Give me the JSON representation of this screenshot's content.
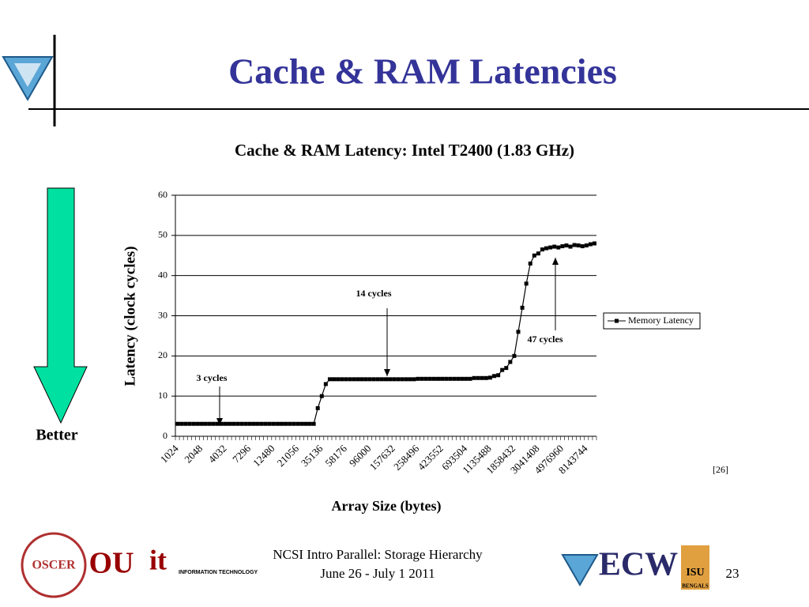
{
  "slide_title": "Cache & RAM Latencies",
  "better": "Better",
  "citation": "[26]",
  "footer": {
    "line1": "NCSI Intro Parallel: Storage Hierarchy",
    "line2": "June 26 - July 1 2011",
    "page": "23"
  },
  "logos": [
    "OSCER",
    "OU",
    "it",
    "INFORMATION TECHNOLOGY",
    "ECW",
    "ISU",
    "BENGALS"
  ],
  "chart_data": {
    "type": "line",
    "title": "Cache & RAM Latency: Intel T2400 (1.83 GHz)",
    "x_label": "Array Size (bytes)",
    "y_label": "Latency (clock cycles)",
    "categories": [
      "1024",
      null,
      null,
      null,
      null,
      null,
      "2048",
      null,
      null,
      null,
      null,
      null,
      "4032",
      null,
      null,
      null,
      null,
      null,
      "7296",
      null,
      null,
      null,
      null,
      null,
      "12480",
      null,
      null,
      null,
      null,
      null,
      "21056",
      null,
      null,
      null,
      null,
      null,
      "35136",
      null,
      null,
      null,
      null,
      null,
      "58176",
      null,
      null,
      null,
      null,
      null,
      "96000",
      null,
      null,
      null,
      null,
      null,
      "157632",
      null,
      null,
      null,
      null,
      null,
      "258496",
      null,
      null,
      null,
      null,
      null,
      "423552",
      null,
      null,
      null,
      null,
      null,
      "693504",
      null,
      null,
      null,
      null,
      null,
      "1135488",
      null,
      null,
      null,
      null,
      null,
      "1858432",
      null,
      null,
      null,
      null,
      null,
      "3041408",
      null,
      null,
      null,
      null,
      null,
      "4976960",
      null,
      null,
      null,
      null,
      null,
      "8143744",
      null,
      null
    ],
    "series": [
      {
        "name": "Memory Latency",
        "color": "#000000",
        "values": [
          3.1,
          3.1,
          3.1,
          3.1,
          3.1,
          3.1,
          3.1,
          3.1,
          3.1,
          3.1,
          3.1,
          3.1,
          3.1,
          3.1,
          3.1,
          3.1,
          3.1,
          3.1,
          3.1,
          3.1,
          3.1,
          3.1,
          3.1,
          3.1,
          3.1,
          3.1,
          3.1,
          3.1,
          3.1,
          3.1,
          3.1,
          3.1,
          3.1,
          3.1,
          3.1,
          7,
          10,
          13,
          14.2,
          14.2,
          14.2,
          14.2,
          14.2,
          14.2,
          14.2,
          14.2,
          14.2,
          14.2,
          14.2,
          14.2,
          14.2,
          14.2,
          14.2,
          14.2,
          14.2,
          14.2,
          14.2,
          14.2,
          14.2,
          14.2,
          14.3,
          14.3,
          14.3,
          14.3,
          14.3,
          14.3,
          14.3,
          14.3,
          14.3,
          14.3,
          14.3,
          14.3,
          14.3,
          14.3,
          14.5,
          14.5,
          14.5,
          14.5,
          14.6,
          15,
          15.2,
          16.5,
          17,
          18.5,
          20,
          26,
          32,
          38,
          43,
          45,
          45.5,
          46.5,
          46.8,
          47,
          47.2,
          47,
          47.3,
          47.5,
          47.2,
          47.6,
          47.5,
          47.3,
          47.5,
          47.8,
          48
        ]
      }
    ],
    "annotations": [
      "3 cycles",
      "14 cycles",
      "47 cycles"
    ],
    "ylim": [
      0,
      60
    ],
    "yticks": [
      0,
      10,
      20,
      30,
      40,
      50,
      60
    ],
    "grid": true,
    "legend": "right"
  }
}
